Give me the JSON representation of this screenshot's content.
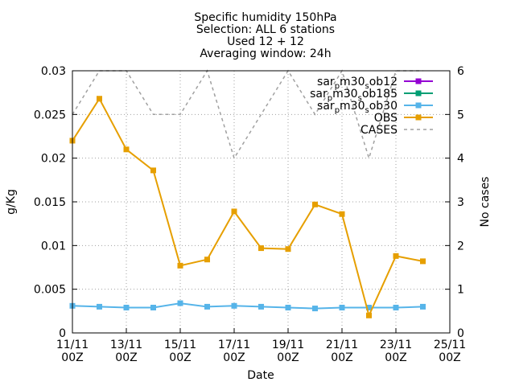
{
  "chart_data": {
    "type": "line",
    "title_lines": [
      "Specific humidity 150hPa",
      "Selection: ALL       6 stations",
      "Used 12 + 12",
      "Averaging window: 24h"
    ],
    "xlabel": "Date",
    "ylabel": "g/Kg",
    "y2label": "No cases",
    "x_ticks": [
      {
        "day": 11,
        "top": "11/11",
        "bottom": "00Z"
      },
      {
        "day": 13,
        "top": "13/11",
        "bottom": "00Z"
      },
      {
        "day": 15,
        "top": "15/11",
        "bottom": "00Z"
      },
      {
        "day": 17,
        "top": "17/11",
        "bottom": "00Z"
      },
      {
        "day": 19,
        "top": "19/11",
        "bottom": "00Z"
      },
      {
        "day": 21,
        "top": "21/11",
        "bottom": "00Z"
      },
      {
        "day": 23,
        "top": "23/11",
        "bottom": "00Z"
      },
      {
        "day": 25,
        "top": "25/11",
        "bottom": "00Z"
      }
    ],
    "xlim": [
      11,
      25
    ],
    "ylim": [
      0,
      0.03
    ],
    "y_ticks": [
      "0",
      "0.005",
      "0.01",
      "0.015",
      "0.02",
      "0.025",
      "0.03"
    ],
    "y2lim": [
      0,
      6
    ],
    "y2_ticks": [
      "0",
      "1",
      "2",
      "3",
      "4",
      "5",
      "6"
    ],
    "grid": true,
    "legend_position": "top-right",
    "series": [
      {
        "name": "sar_pm30_sob12",
        "legend_parts": [
          [
            "sar",
            ""
          ],
          [
            "p",
            "sub"
          ],
          [
            "m30",
            ""
          ],
          [
            "s",
            "sub"
          ],
          [
            "ob12",
            ""
          ]
        ],
        "color": "#9400d3",
        "marker": "filled-square",
        "axis": "y",
        "x": [],
        "values": []
      },
      {
        "name": "sar_pm30_sob185",
        "legend_parts": [
          [
            "sar",
            ""
          ],
          [
            "p",
            "sub"
          ],
          [
            "m30",
            ""
          ],
          [
            "s",
            "sub"
          ],
          [
            "ob185",
            ""
          ]
        ],
        "color": "#009e73",
        "marker": "filled-square",
        "axis": "y",
        "x": [],
        "values": []
      },
      {
        "name": "sar_pm30_sob30",
        "legend_parts": [
          [
            "sar",
            ""
          ],
          [
            "p",
            "sub"
          ],
          [
            "m30",
            ""
          ],
          [
            "s",
            "sub"
          ],
          [
            "ob30",
            ""
          ]
        ],
        "color": "#56b4e9",
        "marker": "filled-square",
        "axis": "y",
        "x": [
          11,
          12,
          13,
          14,
          15,
          16,
          17,
          18,
          19,
          20,
          21,
          22,
          23,
          24
        ],
        "values": [
          0.0031,
          0.003,
          0.0029,
          0.0029,
          0.0034,
          0.003,
          0.0031,
          0.003,
          0.0029,
          0.0028,
          0.0029,
          0.0029,
          0.0029,
          0.003
        ]
      },
      {
        "name": "OBS",
        "legend_parts": [
          [
            "OBS",
            ""
          ]
        ],
        "color": "#e69f00",
        "marker": "filled-square",
        "axis": "y",
        "x": [
          11,
          12,
          13,
          14,
          15,
          16,
          17,
          18,
          19,
          20,
          21,
          22,
          23,
          24
        ],
        "values": [
          0.022,
          0.0268,
          0.021,
          0.0186,
          0.0077,
          0.0084,
          0.0139,
          0.0097,
          0.0096,
          0.0147,
          0.0136,
          0.002,
          0.0088,
          0.0082
        ]
      },
      {
        "name": "CASES",
        "legend_parts": [
          [
            "CASES",
            ""
          ]
        ],
        "color": "#a0a0a0",
        "marker": "none",
        "dashed": true,
        "axis": "y2",
        "x": [
          11,
          12,
          13,
          14,
          15,
          16,
          17,
          18,
          19,
          20,
          21,
          22,
          23,
          24
        ],
        "values": [
          5,
          6,
          6,
          5,
          5,
          6,
          4,
          5,
          6,
          5,
          6,
          4,
          6,
          6
        ]
      }
    ]
  }
}
